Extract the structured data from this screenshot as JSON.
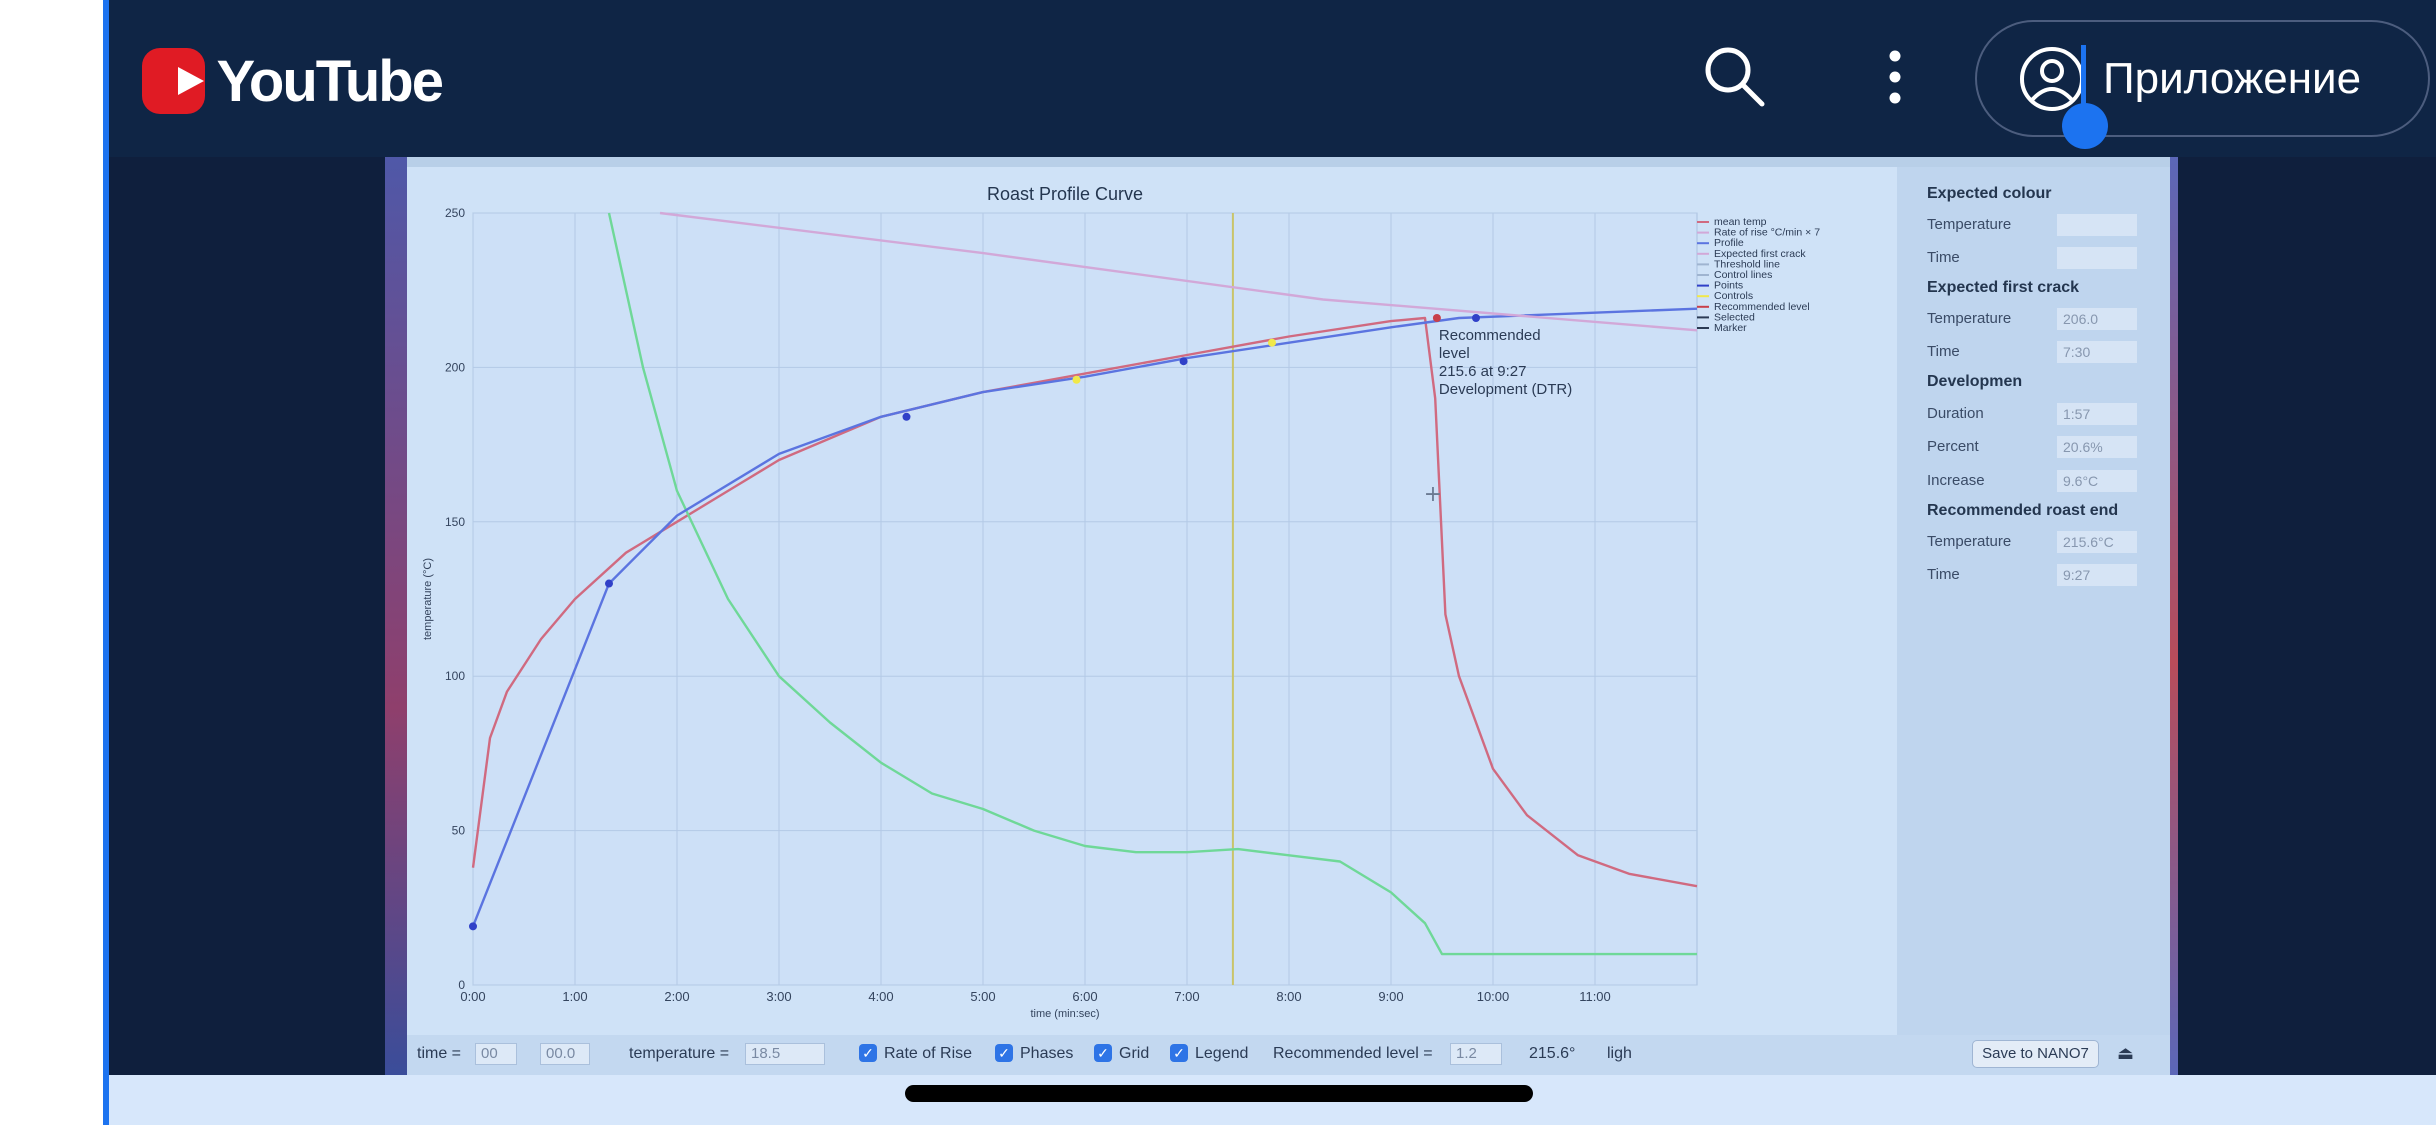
{
  "header": {
    "brand": "YouTube",
    "app_button_label": "Приложение",
    "icons": {
      "search": "search-icon",
      "more": "more-vert-icon",
      "account": "account-circle-icon"
    }
  },
  "video": {
    "chart_data": {
      "type": "line",
      "title": "Roast Profile Curve",
      "xlabel": "time (min:sec)",
      "ylabel": "temperature (°C)",
      "xlim": [
        0,
        720
      ],
      "ylim": [
        0,
        250
      ],
      "x_ticks": [
        "0:00",
        "1:00",
        "2:00",
        "3:00",
        "4:00",
        "5:00",
        "6:00",
        "7:00",
        "8:00",
        "9:00",
        "10:00",
        "11:00"
      ],
      "y_ticks": [
        "0",
        "50",
        "100",
        "150",
        "200",
        "250"
      ],
      "grid": true,
      "legend_position": "top-right",
      "legend": [
        "mean temp",
        "Rate of rise °C/min × 7",
        "Profile",
        "Expected first crack",
        "Threshold line",
        "Control lines",
        "Points",
        "Controls",
        "Recommended level",
        "Selected",
        "Marker"
      ],
      "series": [
        {
          "name": "mean temp",
          "color": "#d06a80",
          "x": [
            0,
            10,
            20,
            40,
            60,
            90,
            120,
            150,
            180,
            210,
            240,
            300,
            360,
            420,
            480,
            540,
            560,
            566,
            572,
            580,
            600,
            620,
            650,
            680,
            720
          ],
          "y": [
            38,
            80,
            95,
            112,
            125,
            140,
            150,
            160,
            170,
            177,
            184,
            192,
            198,
            204,
            210,
            215,
            216,
            190,
            120,
            100,
            70,
            55,
            42,
            36,
            32
          ]
        },
        {
          "name": "Rate of rise °C/min × 7",
          "color": "#6fd898",
          "x": [
            80,
            100,
            120,
            150,
            180,
            210,
            240,
            270,
            300,
            330,
            360,
            390,
            420,
            450,
            480,
            510,
            540,
            560,
            570,
            600,
            720
          ],
          "y": [
            250,
            200,
            160,
            125,
            100,
            85,
            72,
            62,
            57,
            50,
            45,
            43,
            43,
            44,
            42,
            40,
            30,
            20,
            10,
            10,
            10
          ]
        },
        {
          "name": "Profile",
          "color": "#5b74e0",
          "x": [
            0,
            80,
            120,
            180,
            240,
            300,
            360,
            420,
            480,
            540,
            580,
            720
          ],
          "y": [
            19,
            130,
            152,
            172,
            184,
            192,
            197,
            203,
            208,
            213,
            216,
            219
          ]
        },
        {
          "name": "Threshold line",
          "color": "#d2a8d8",
          "x": [
            110,
            300,
            500,
            720
          ],
          "y": [
            250,
            237,
            222,
            212
          ]
        }
      ],
      "vertical_marker_time": "7:27",
      "points": [
        {
          "x": 0,
          "y": 19
        },
        {
          "x": 80,
          "y": 130
        },
        {
          "x": 255,
          "y": 184
        },
        {
          "x": 418,
          "y": 202
        },
        {
          "x": 590,
          "y": 216
        }
      ],
      "controls": [
        {
          "x": 355,
          "y": 196
        },
        {
          "x": 470,
          "y": 208
        }
      ],
      "recommended_point": {
        "x": 567,
        "y": 216
      },
      "annotation": [
        "Recommended",
        "level",
        "215.6 at 9:27",
        "Development (DTR)"
      ]
    },
    "side_panel": {
      "expected_colour": {
        "title": "Expected colour",
        "temperature_label": "Temperature",
        "temperature_value": "",
        "time_label": "Time",
        "time_value": ""
      },
      "expected_first_crack": {
        "title": "Expected first crack",
        "temperature_label": "Temperature",
        "temperature_value": "206.0",
        "time_label": "Time",
        "time_value": "7:30"
      },
      "development": {
        "title": "Developmen",
        "duration_label": "Duration",
        "duration_value": "1:57",
        "percent_label": "Percent",
        "percent_value": "20.6%",
        "increase_label": "Increase",
        "increase_value": "9.6°C"
      },
      "recommended_end": {
        "title": "Recommended roast end",
        "temperature_label": "Temperature",
        "temperature_value": "215.6°C",
        "time_label": "Time",
        "time_value": "9:27"
      }
    },
    "toolbar": {
      "time_label": "time =",
      "time_min": "00",
      "time_sec": "00.0",
      "temperature_label": "temperature =",
      "temperature_value": "18.5",
      "rate_of_rise": "Rate of Rise",
      "phases": "Phases",
      "grid": "Grid",
      "legend": "Legend",
      "recommended_label": "Recommended level =",
      "recommended_value": "1.2",
      "recommended_temp": "215.6°",
      "light": "ligh",
      "save_button": "Save to NANO7"
    }
  }
}
